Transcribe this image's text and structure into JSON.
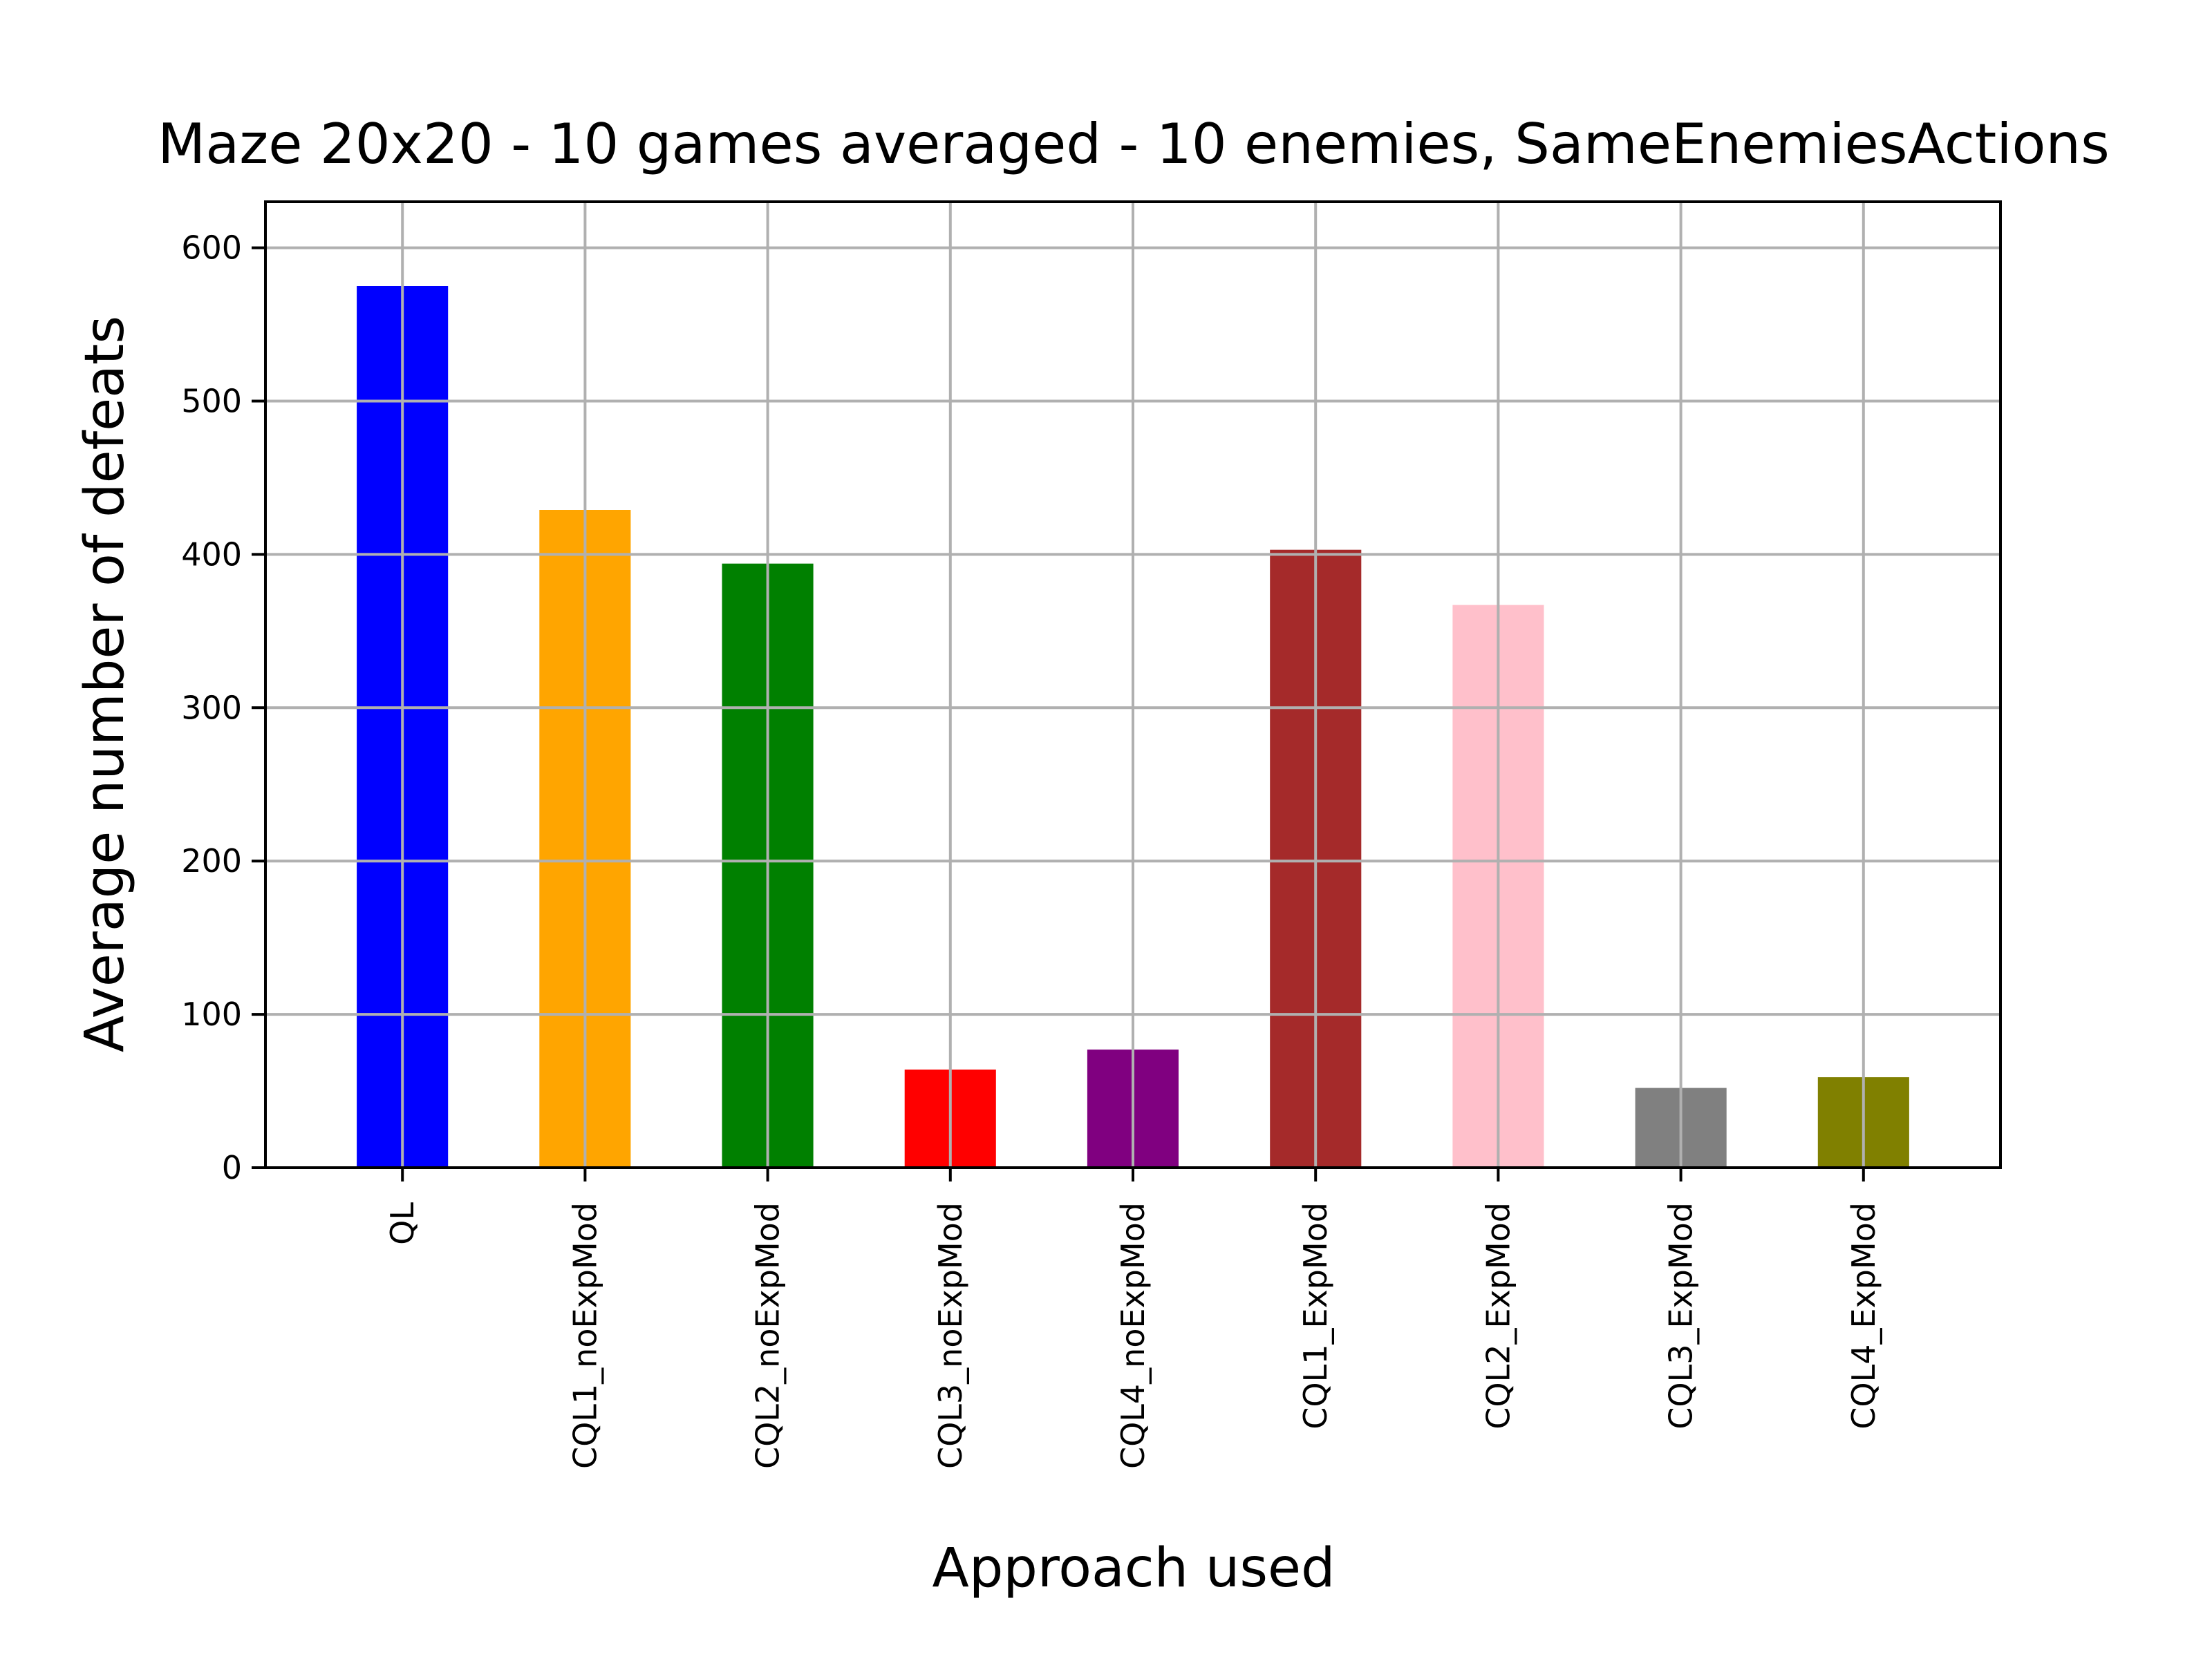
{
  "chart_data": {
    "type": "bar",
    "title": "Maze 20x20 - 10 games averaged - 10 enemies, SameEnemiesActions",
    "xlabel": "Approach used",
    "ylabel": "Average number of defeats",
    "categories": [
      "QL",
      "CQL1_noExpMod",
      "CQL2_noExpMod",
      "CQL3_noExpMod",
      "CQL4_noExpMod",
      "CQL1_ExpMod",
      "CQL2_ExpMod",
      "CQL3_ExpMod",
      "CQL4_ExpMod"
    ],
    "values": [
      575,
      429,
      394,
      64,
      77,
      403,
      367,
      52,
      59
    ],
    "colors": [
      "#0000ff",
      "#ffa500",
      "#008000",
      "#ff0000",
      "#800080",
      "#a52a2a",
      "#ffc0cb",
      "#808080",
      "#808000"
    ],
    "ylim": [
      0,
      600
    ],
    "yticks": [
      0,
      100,
      200,
      300,
      400,
      500,
      600
    ],
    "grid": true,
    "legend": "none"
  }
}
